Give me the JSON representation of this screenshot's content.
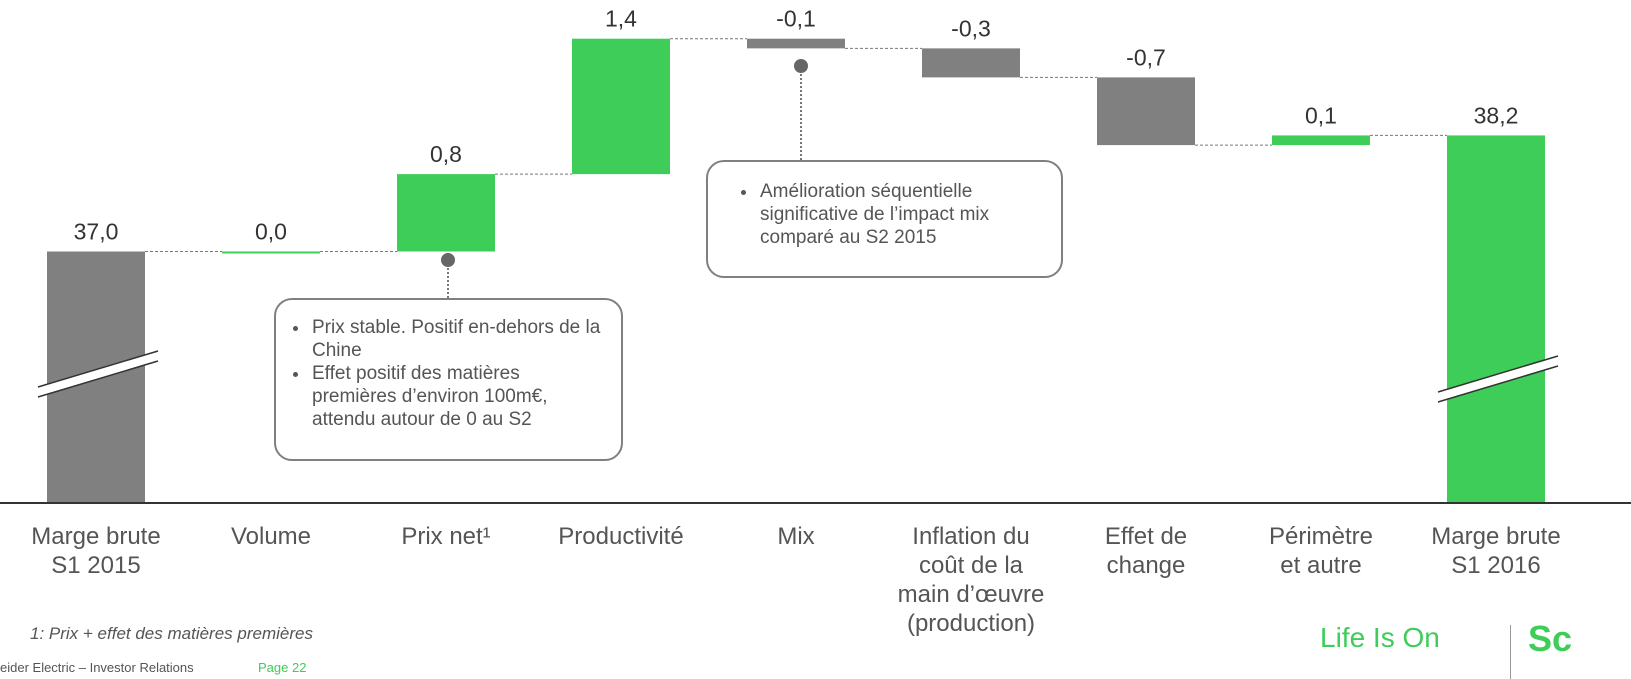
{
  "chart_data": {
    "type": "waterfall",
    "categories": [
      "Marge brute\nS1 2015",
      "Volume",
      "Prix net¹",
      "Productivité",
      "Mix",
      "Inflation du\ncoût de la\nmain d’œuvre\n(production)",
      "Effet de\nchange",
      "Périmètre\net autre",
      "Marge brute\nS1 2016"
    ],
    "values": [
      37.0,
      0.0,
      0.8,
      1.4,
      -0.1,
      -0.3,
      -0.7,
      0.1,
      38.2
    ],
    "value_labels": [
      "37,0",
      "0,0",
      "0,8",
      "1,4",
      "-0,1",
      "-0,3",
      "-0,7",
      "0,1",
      "38,2"
    ],
    "colors": {
      "positive": "#3dcd58",
      "negative": "#808080",
      "total": "#808080",
      "final": "#3dcd58"
    },
    "ylim": [
      34.4,
      39.6
    ],
    "annotations": [
      {
        "bullets": [
          "Prix stable. Positif en-dehors de la Chine",
          "Effet positif des matières premières d’environ 100m€, attendu autour de 0 au S2"
        ]
      },
      {
        "bullets": [
          "Amélioration séquentielle significative de l’impact mix comparé au S2 2015"
        ]
      }
    ],
    "footnote": "1: Prix + effet des matières premières"
  },
  "footer": {
    "source": "eider Electric – Investor Relations",
    "page": "Page 22",
    "tagline": "Life Is On",
    "logo": "Sc"
  }
}
